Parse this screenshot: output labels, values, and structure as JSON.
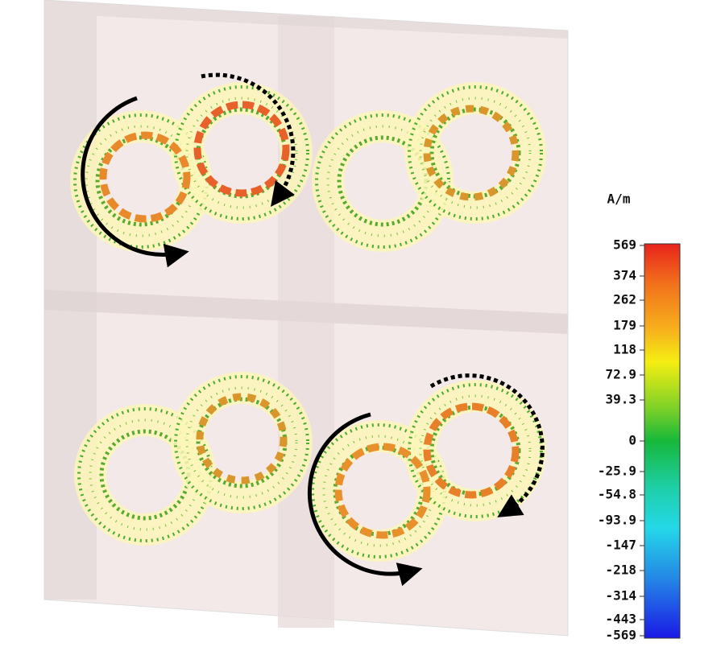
{
  "colorbar": {
    "unit": "A/m",
    "ticks": [
      569,
      374,
      262,
      179,
      118,
      72.9,
      39.3,
      0,
      -25.9,
      -54.8,
      -93.9,
      -147,
      -218,
      -314,
      -443,
      -569
    ]
  }
}
